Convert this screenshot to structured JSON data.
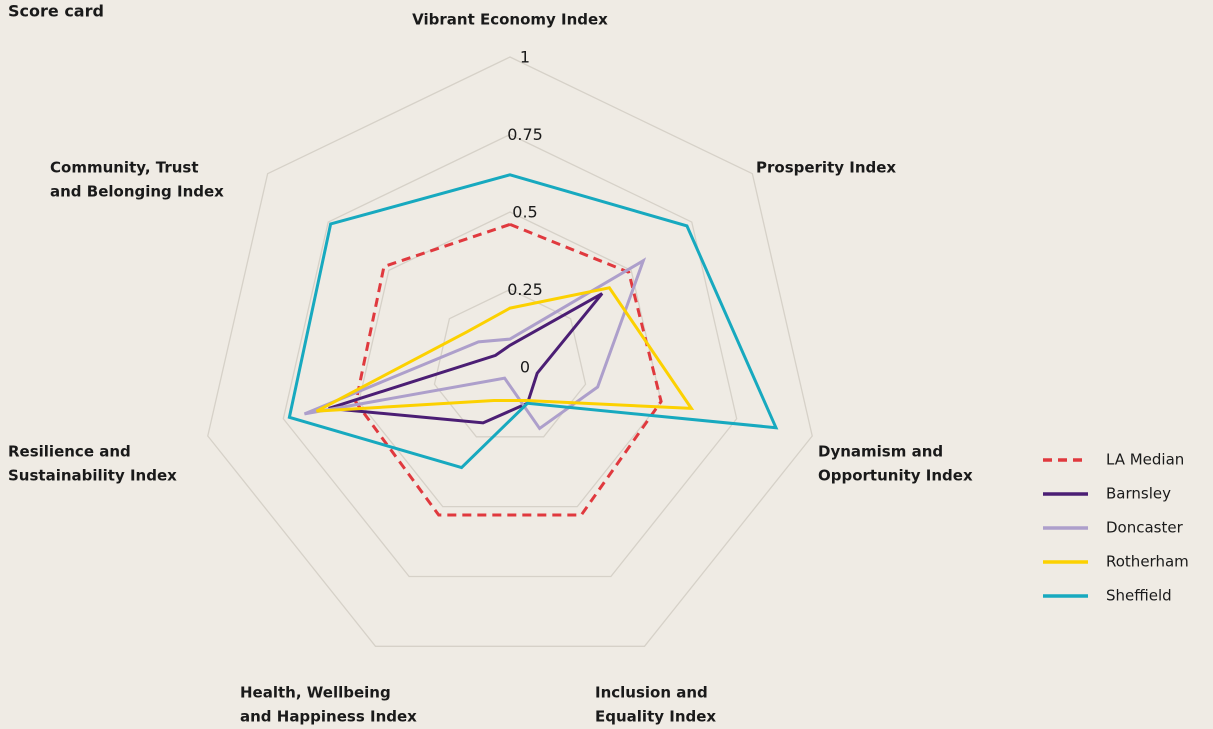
{
  "chart_data": {
    "type": "radar",
    "title": "Score card",
    "categories": [
      [
        "Vibrant Economy Index"
      ],
      [
        "Prosperity Index"
      ],
      [
        "Dynamism and",
        "Opportunity Index"
      ],
      [
        "Inclusion and",
        "Equality Index"
      ],
      [
        "Health, Wellbeing",
        "and Happiness Index"
      ],
      [
        "Resilience and",
        "Sustainability Index"
      ],
      [
        "Community, Trust",
        "and Belonging Index"
      ]
    ],
    "ylim": [
      0,
      1
    ],
    "yticks": [
      0,
      0.25,
      0.5,
      0.75,
      1
    ],
    "grid": true,
    "legend": "right",
    "series": [
      {
        "name": "LA Median",
        "color": "#e0393e",
        "dashed": true,
        "values": [
          0.46,
          0.49,
          0.5,
          0.53,
          0.53,
          0.51,
          0.52
        ]
      },
      {
        "name": "Barnsley",
        "color": "#4b1e74",
        "values": [
          0.07,
          0.38,
          0.09,
          0.13,
          0.2,
          0.6,
          0.06
        ]
      },
      {
        "name": "Doncaster",
        "color": "#ad9fcb",
        "values": [
          0.09,
          0.55,
          0.29,
          0.22,
          0.04,
          0.68,
          0.13
        ]
      },
      {
        "name": "Rotherham",
        "color": "#fcd100",
        "values": [
          0.19,
          0.41,
          0.6,
          0.12,
          0.12,
          0.64,
          0.18
        ]
      },
      {
        "name": "Sheffield",
        "color": "#17a9bf",
        "values": [
          0.62,
          0.73,
          0.88,
          0.13,
          0.36,
          0.73,
          0.74
        ]
      }
    ]
  }
}
